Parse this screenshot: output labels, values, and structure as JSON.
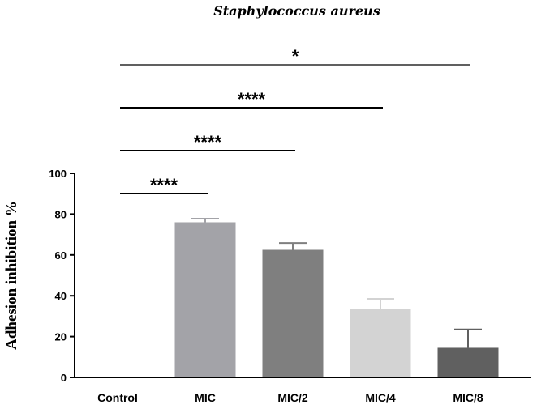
{
  "chart_data": {
    "type": "bar",
    "title": "Staphylococcus aureus",
    "ylabel": "Adhesion inhibition %",
    "xlabel": "",
    "categories": [
      "Control",
      "MIC",
      "MIC/2",
      "MIC/4",
      "MIC/8"
    ],
    "values": [
      0,
      76,
      62.5,
      33.5,
      14.5
    ],
    "errors": [
      0,
      1.8,
      3.3,
      5,
      9
    ],
    "colors": [
      "#ffffff",
      "#a3a3a8",
      "#7f7f7f",
      "#d3d3d3",
      "#606060"
    ],
    "ylim": [
      0,
      100
    ],
    "yticks": [
      0,
      20,
      40,
      60,
      80,
      100
    ],
    "grid": false,
    "significance": [
      {
        "from": 0,
        "to": 1,
        "label": "****"
      },
      {
        "from": 0,
        "to": 2,
        "label": "****"
      },
      {
        "from": 0,
        "to": 3,
        "label": "****"
      },
      {
        "from": 0,
        "to": 4,
        "label": "*"
      }
    ]
  }
}
